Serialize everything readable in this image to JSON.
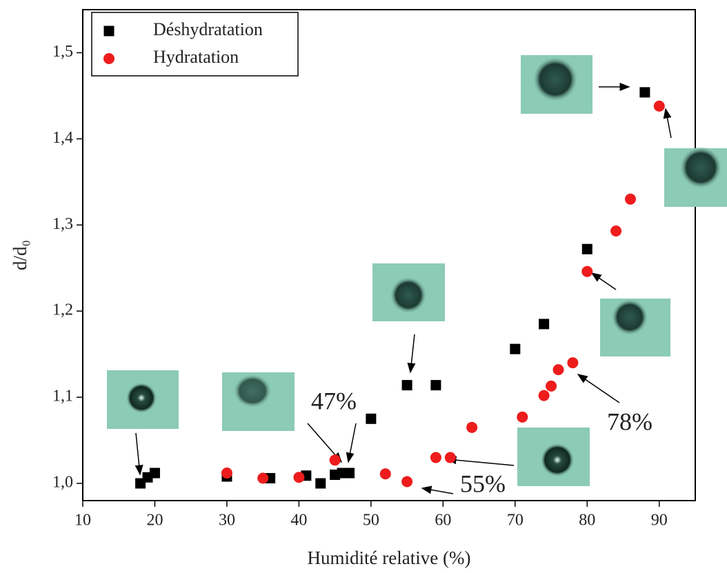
{
  "chart_data": {
    "type": "scatter",
    "x_label": "Humidité relative (%)",
    "y_label": "d/d₀",
    "xlim": [
      10,
      95
    ],
    "ylim": [
      0.98,
      1.55
    ],
    "xticks": [
      10,
      20,
      30,
      40,
      50,
      60,
      70,
      80,
      90
    ],
    "yticks": [
      {
        "value": 1.0,
        "label": "1,0"
      },
      {
        "value": 1.1,
        "label": "1,1"
      },
      {
        "value": 1.2,
        "label": "1,2"
      },
      {
        "value": 1.3,
        "label": "1,3"
      },
      {
        "value": 1.4,
        "label": "1,4"
      },
      {
        "value": 1.5,
        "label": "1,5"
      }
    ],
    "legend_position": "upper-left",
    "series": [
      {
        "name": "Déshydratation",
        "color": "#000000",
        "marker": "square",
        "x": [
          18,
          19,
          20,
          30,
          36,
          41,
          43,
          45,
          46,
          47,
          50,
          55,
          59,
          70,
          74,
          80,
          88
        ],
        "values": [
          1.0,
          1.007,
          1.012,
          1.008,
          1.006,
          1.009,
          1.0,
          1.01,
          1.012,
          1.012,
          1.075,
          1.114,
          1.114,
          1.156,
          1.185,
          1.272,
          1.454
        ]
      },
      {
        "name": "Hydratation",
        "color": "#ee1c1c",
        "marker": "circle",
        "x": [
          30,
          35,
          40,
          45,
          52,
          55,
          59,
          61,
          64,
          71,
          74,
          75,
          76,
          78,
          80,
          84,
          86,
          90
        ],
        "values": [
          1.012,
          1.006,
          1.007,
          1.027,
          1.011,
          1.002,
          1.03,
          1.03,
          1.065,
          1.077,
          1.102,
          1.113,
          1.132,
          1.14,
          1.246,
          1.293,
          1.33,
          1.438
        ]
      }
    ],
    "annotations": [
      "47%",
      "78%",
      "55%"
    ]
  }
}
